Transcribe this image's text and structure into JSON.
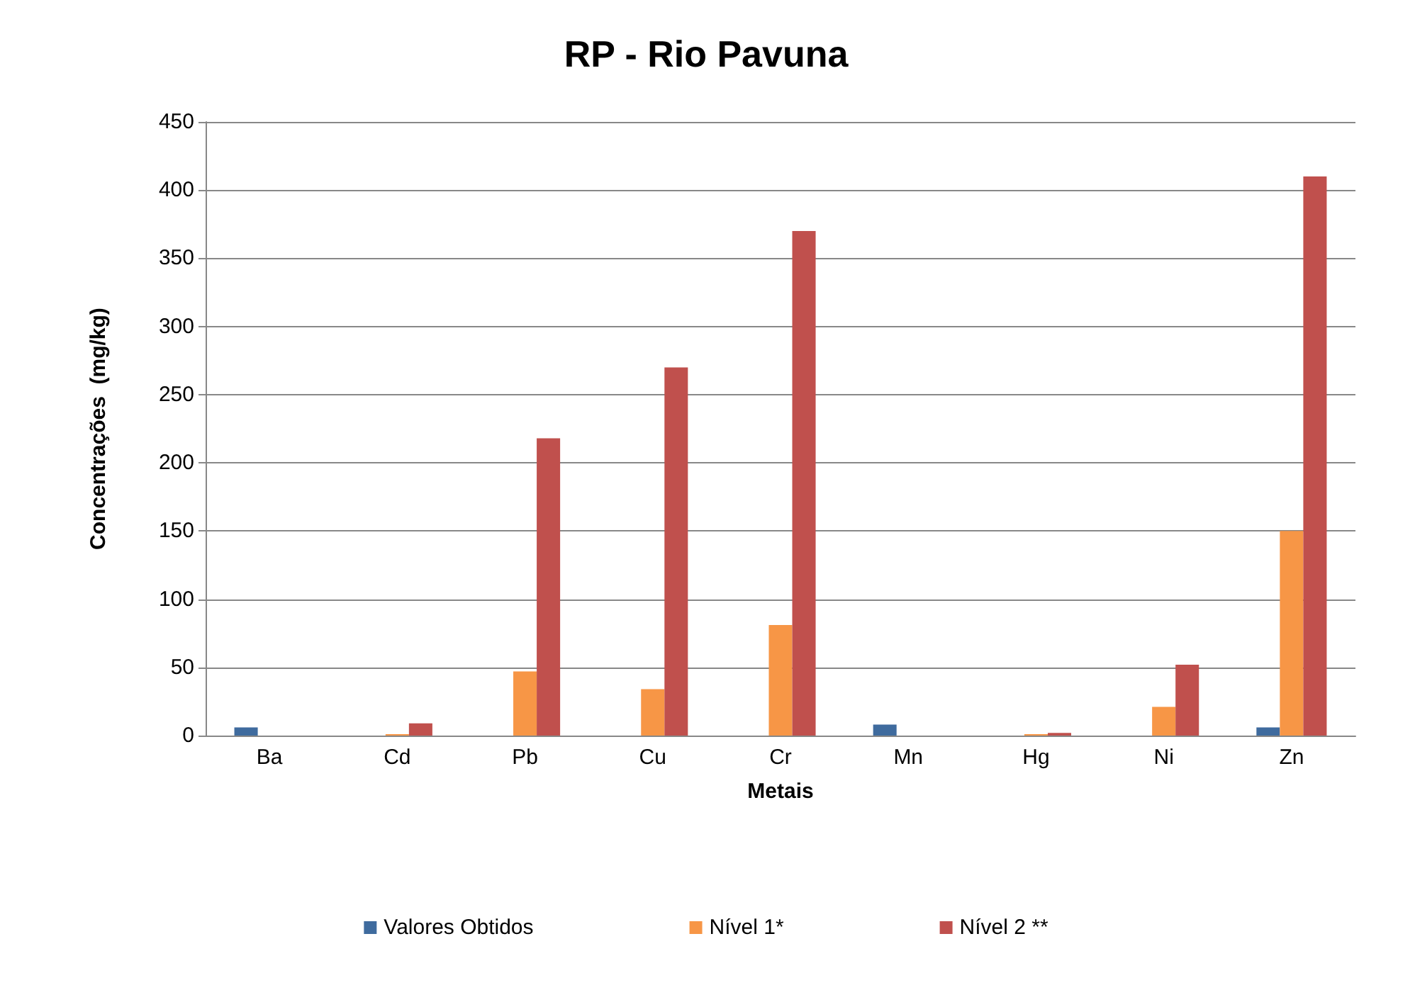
{
  "chart_data": {
    "type": "bar",
    "title": "RP - Rio Pavuna",
    "xlabel": "Metais",
    "ylabel": "Concentrações  (mg/kg)",
    "categories": [
      "Ba",
      "Cd",
      "Pb",
      "Cu",
      "Cr",
      "Mn",
      "Hg",
      "Ni",
      "Zn"
    ],
    "series": [
      {
        "name": "Valores Obtidos",
        "color": "#3f6b9e",
        "values": [
          6,
          null,
          null,
          null,
          null,
          8,
          null,
          null,
          6
        ]
      },
      {
        "name": "Nível 1*",
        "color": "#f79646",
        "values": [
          null,
          1,
          47,
          34,
          81,
          null,
          1,
          21,
          150
        ]
      },
      {
        "name": "Nível 2 **",
        "color": "#c0504d",
        "values": [
          null,
          9,
          218,
          270,
          370,
          null,
          2,
          52,
          410
        ]
      }
    ],
    "ylim": [
      0,
      450
    ],
    "yticks": [
      0,
      50,
      100,
      150,
      200,
      250,
      300,
      350,
      400,
      450
    ],
    "grid": "y",
    "legend": "bottom"
  }
}
